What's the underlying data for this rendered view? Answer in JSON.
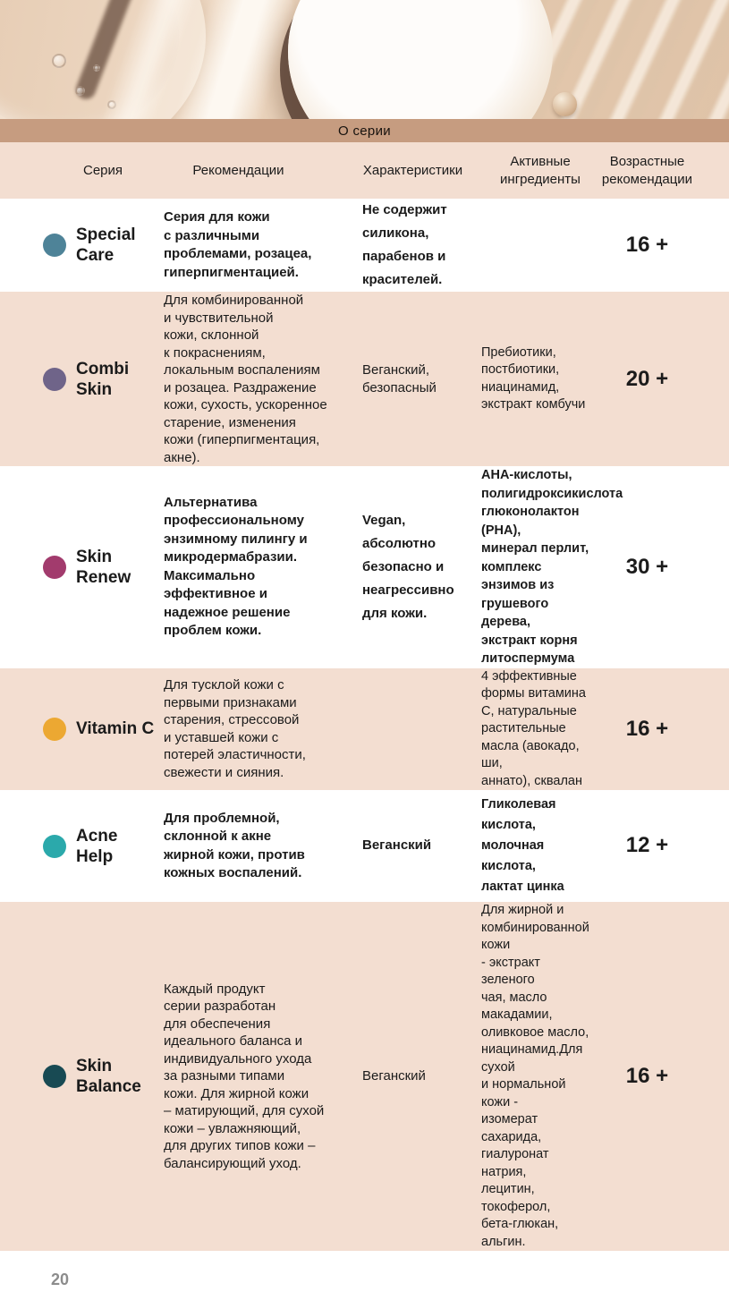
{
  "tab": {
    "label": "О серии"
  },
  "page": {
    "number": "20"
  },
  "colors": {
    "tan": "#C69C80",
    "pink": "#F3DED1",
    "text": "#1B1B1B"
  },
  "table": {
    "headers": [
      "Серия",
      "Рекомендации",
      "Характеристики",
      "Активные\nингредиенты",
      "Возрастные\nрекомендации"
    ],
    "rows": [
      {
        "name": "Special\nCare",
        "dot_color": "#4E8398",
        "recommendations": "Серия для кожи\nс различными\nпроблемами, розацеа,\nгиперпигментацией.",
        "characteristics": "Не содержит\nсиликона,\nпарабенов и\nкрасителей.",
        "ingredients": "",
        "age": "16 +"
      },
      {
        "name": "Combi\nSkin",
        "dot_color": "#6F6489",
        "recommendations": "Для комбинированной\nи чувствительной\nкожи, склонной\nк покраснениям,\nлокальным воспалениям\nи розацеа. Раздражение\nкожи, сухость, ускоренное\nстарение, изменения\nкожи (гиперпигментация,\nакне).",
        "characteristics": "Веганский,\nбезопасный",
        "ingredients": "Пребиотики,\nпостбиотики,\nниацинамид,\nэкстракт комбучи",
        "age": "20 +"
      },
      {
        "name": "Skin\nRenew",
        "dot_color": "#A23B6D",
        "recommendations": "Альтернатива\nпрофессиональному\nэнзимному пилингу и\nмикродермабразии.\nМаксимально\nэффективное и\nнадежное решение\nпроблем кожи.",
        "characteristics": "Vegan,\nабсолютно\nбезопасно и\nнеагрессивно\nдля кожи.",
        "ingredients": "АНА-кислоты,\nполигидроксикислота\nглюконолактон (PHA),\nминерал перлит,\nкомплекс энзимов из\nгрушевого дерева,\nэкстракт корня\nлитоспермума",
        "age": "30 +"
      },
      {
        "name": "Vitamin C",
        "dot_color": "#ECA832",
        "recommendations": "Для тусклой кожи с\nпервыми признаками\nстарения, стрессовой\nи уставшей кожи с\nпотерей эластичности,\nсвежести и сияния.",
        "characteristics": "",
        "ingredients": "4 эффективные\nформы витамина\nС, натуральные\nрастительные\nмасла (авокадо, ши,\nаннато), сквалан",
        "age": "16 +"
      },
      {
        "name": "Acne\nHelp",
        "dot_color": "#2BA9AB",
        "recommendations": "Для проблемной,\nсклонной к акне\nжирной кожи, против\nкожных воспалений.",
        "characteristics": "Веганский",
        "ingredients": "Гликолевая кислота,\nмолочная кислота,\nлактат цинка",
        "age": "12 +"
      },
      {
        "name": "Skin\nBalance",
        "dot_color": "#184A53",
        "recommendations": "Каждый продукт\nсерии разработан\nдля обеспечения\nидеального баланса и\nиндивидуального ухода\nза разными типами\nкожи. Для жирной кожи\n– матирующий, для сухой\nкожи – увлажняющий,\nдля других типов кожи –\nбалансирующий уход.",
        "characteristics": "Веганский",
        "ingredients": "Для жирной и\nкомбинированной кожи\n- экстракт зеленого\nчая, масло макадамии,\nоливковое масло,\nниацинамид.Для сухой\nи нормальной кожи -\nизомерат сахарида,\nгиалуронат натрия,\nлецитин, токоферол,\nбета-глюкан, альгин.",
        "age": "16 +"
      }
    ]
  }
}
